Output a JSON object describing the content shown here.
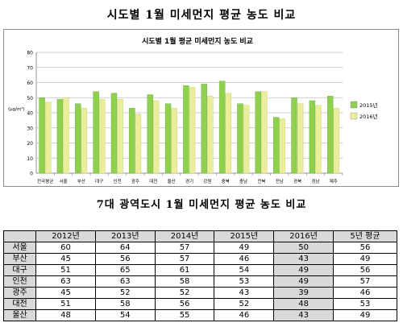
{
  "page": {
    "title1": "시도별 1월 미세먼지 평균 농도 비교",
    "title2": "7대 광역도시 1월 미세먼지 평균 농도 비교"
  },
  "chart_data": {
    "type": "bar",
    "title": "시도별 1월 평균 미세먼지 농도 비교",
    "ylabel": "(μg/m³)",
    "ylim": [
      0,
      80
    ],
    "yticks": [
      0,
      10,
      20,
      30,
      40,
      50,
      60,
      70,
      80
    ],
    "grid": true,
    "legend_position": "right",
    "categories": [
      "전국평균",
      "서울",
      "부산",
      "대구",
      "인천",
      "광주",
      "대전",
      "울산",
      "경기",
      "강원",
      "충북",
      "충남",
      "전북",
      "전남",
      "경북",
      "경남",
      "제주"
    ],
    "series": [
      {
        "name": "2015년",
        "color": "#8fd14f",
        "values": [
          50,
          49,
          46,
          54,
          53,
          43,
          52,
          46,
          58,
          59,
          61,
          46,
          54,
          37,
          50,
          48,
          51
        ]
      },
      {
        "name": "2016년",
        "color": "#e9ed9c",
        "values": [
          47,
          50,
          43,
          49,
          49,
          39,
          48,
          43,
          57,
          51,
          53,
          45,
          54,
          36,
          46,
          45,
          43
        ]
      }
    ]
  },
  "table": {
    "headers": [
      "",
      "2012년",
      "2013년",
      "2014년",
      "2015년",
      "2016년",
      "5년 평균"
    ],
    "rows": [
      [
        "서울",
        "60",
        "64",
        "57",
        "49",
        "50",
        "56"
      ],
      [
        "부산",
        "45",
        "56",
        "57",
        "46",
        "43",
        "49"
      ],
      [
        "대구",
        "51",
        "65",
        "61",
        "54",
        "49",
        "56"
      ],
      [
        "인천",
        "63",
        "63",
        "58",
        "53",
        "49",
        "57"
      ],
      [
        "광주",
        "45",
        "52",
        "52",
        "43",
        "39",
        "46"
      ],
      [
        "대전",
        "51",
        "58",
        "56",
        "52",
        "48",
        "53"
      ],
      [
        "울산",
        "48",
        "54",
        "55",
        "46",
        "43",
        "49"
      ]
    ]
  }
}
